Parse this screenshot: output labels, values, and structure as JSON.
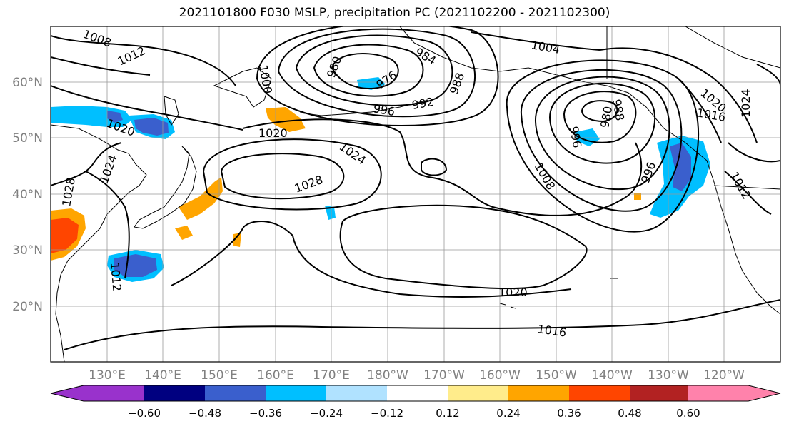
{
  "title": "2021101800 F030 MSLP, precipitation PC (2021102200 - 2021102300)",
  "lat_labels": [
    "60°N",
    "50°N",
    "40°N",
    "30°N",
    "20°N"
  ],
  "lon_labels": [
    "130°E",
    "140°E",
    "150°E",
    "160°E",
    "170°E",
    "180°W",
    "170°W",
    "160°W",
    "150°W",
    "140°W",
    "130°W",
    "120°W"
  ],
  "contour_labels": [
    "1008",
    "1012",
    "1020",
    "1028",
    "1024",
    "1012",
    "1020",
    "1024",
    "1028",
    "980",
    "976",
    "984",
    "992",
    "996",
    "988",
    "1004",
    "1000",
    "996",
    "980",
    "988",
    "1008",
    "996",
    "1016",
    "1020",
    "1024",
    "1012",
    "1020",
    "1016"
  ],
  "colorbar": {
    "colors": [
      "#9932CC",
      "#000080",
      "#3A5FCD",
      "#00BFFF",
      "#B0E2FF",
      "#FFFFFF",
      "#FFEC8B",
      "#FFA500",
      "#FF4500",
      "#B22222",
      "#FF82AB"
    ],
    "ticks": [
      "−0.60",
      "−0.48",
      "−0.36",
      "−0.24",
      "−0.12",
      "0.12",
      "0.24",
      "0.36",
      "0.48",
      "0.60"
    ]
  },
  "palette": {
    "land_outline": "#000000",
    "grid": "#999999",
    "axis_label": "#808080",
    "contour": "#000000"
  }
}
